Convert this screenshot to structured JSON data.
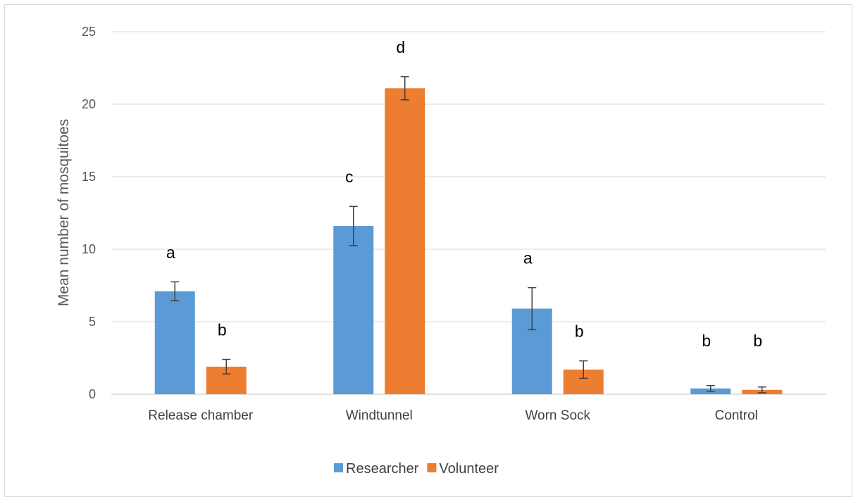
{
  "chart_data": {
    "type": "bar",
    "categories": [
      "Release chamber",
      "Windtunnel",
      "Worn Sock",
      "Control"
    ],
    "series": [
      {
        "name": "Researcher",
        "color": "#5b9bd5",
        "values": [
          7.1,
          11.6,
          5.9,
          0.4
        ],
        "errors": [
          0.65,
          1.35,
          1.45,
          0.2
        ],
        "letters": [
          "a",
          "c",
          "a",
          "b"
        ]
      },
      {
        "name": "Volunteer",
        "color": "#ed7d31",
        "values": [
          1.9,
          21.1,
          1.7,
          0.3
        ],
        "errors": [
          0.5,
          0.8,
          0.6,
          0.2
        ],
        "letters": [
          "b",
          "d",
          "b",
          "b"
        ]
      }
    ],
    "ylabel": "Mean number of mosquitoes",
    "xlabel": "",
    "ylim": [
      0,
      25
    ],
    "yticks": [
      0,
      5,
      10,
      15,
      20,
      25
    ],
    "grid": true,
    "legend_position": "bottom"
  }
}
